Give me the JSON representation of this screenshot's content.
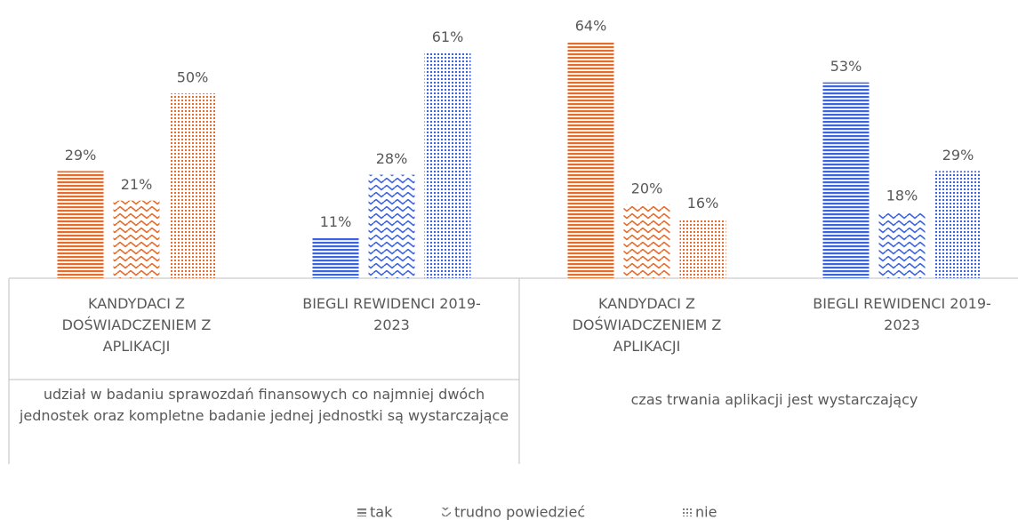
{
  "chart_data": {
    "type": "bar",
    "categories": [
      "KANDYDACI Z DOŚWIADCZENIEM Z APLIKACJI",
      "BIEGLI REWIDENCI 2019-2023",
      "KANDYDACI Z DOŚWIADCZENIEM Z APLIKACJI",
      "BIEGLI REWIDENCI 2019-2023"
    ],
    "group_labels": [
      "udział w badaniu sprawozdań finansowych co najmniej dwóch jednostek oraz kompletne badanie jednej jednostki są wystarczające",
      "czas trwania aplikacji jest wystarczający"
    ],
    "category_colors": [
      "#E46C2C",
      "#3D63DD",
      "#E46C2C",
      "#3D63DD"
    ],
    "series": [
      {
        "name": "tak",
        "pattern": "horizontal",
        "values": [
          29,
          11,
          64,
          53
        ],
        "value_labels": [
          "29%",
          "11%",
          "64%",
          "53%"
        ]
      },
      {
        "name": "trudno powiedzieć",
        "pattern": "wave",
        "values": [
          21,
          28,
          20,
          18
        ],
        "value_labels": [
          "21%",
          "28%",
          "20%",
          "18%"
        ]
      },
      {
        "name": "nie",
        "pattern": "dots",
        "values": [
          50,
          61,
          16,
          29
        ],
        "value_labels": [
          "50%",
          "61%",
          "16%",
          "29%"
        ]
      }
    ],
    "legend_color": "#808080",
    "ylim": [
      0,
      70
    ],
    "legend": "bottom"
  }
}
